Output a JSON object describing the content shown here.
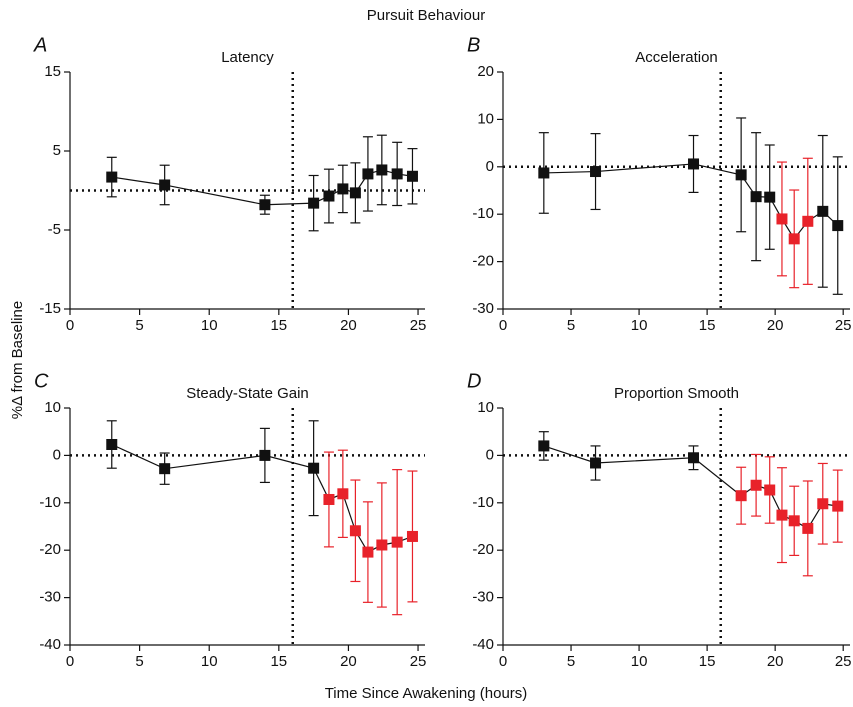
{
  "title": "Pursuit Behaviour",
  "xlabel": "Time Since Awakening (hours)",
  "ylabel": "%Δ from Baseline",
  "chart_data": [
    {
      "type": "line",
      "label": "A",
      "title": "Latency",
      "x": [
        3,
        6.8,
        14,
        17.5,
        18.6,
        19.6,
        20.5,
        21.4,
        22.4,
        23.5,
        24.6
      ],
      "values": [
        1.7,
        0.7,
        -1.8,
        -1.6,
        -0.7,
        0.2,
        -0.3,
        2.1,
        2.6,
        2.1,
        1.8
      ],
      "errors": [
        2.5,
        2.5,
        1.2,
        3.5,
        3.4,
        3.0,
        3.8,
        4.7,
        4.4,
        4.0,
        3.5
      ],
      "color": "#111111",
      "point_colors": [
        "#111111",
        "#111111",
        "#111111",
        "#111111",
        "#111111",
        "#111111",
        "#111111",
        "#111111",
        "#111111",
        "#111111",
        "#111111"
      ],
      "xlim": [
        0,
        25.5
      ],
      "xticks": [
        0,
        5,
        10,
        15,
        20,
        25
      ],
      "ylim": [
        -15,
        15
      ],
      "yticks": [
        -15,
        -5,
        5,
        15
      ],
      "vline": 16,
      "hline": 0
    },
    {
      "type": "line",
      "label": "B",
      "title": "Acceleration",
      "x": [
        3,
        6.8,
        14,
        17.5,
        18.6,
        19.6,
        20.5,
        21.4,
        22.4,
        23.5,
        24.6
      ],
      "values": [
        -1.3,
        -1,
        0.6,
        -1.7,
        -6.3,
        -6.4,
        -11,
        -15.2,
        -11.5,
        -9.4,
        -12.4
      ],
      "errors": [
        8.5,
        8,
        6,
        12,
        13.5,
        11,
        12,
        10.3,
        13.3,
        16,
        14.5
      ],
      "color": "#111111",
      "point_colors": [
        "#111111",
        "#111111",
        "#111111",
        "#111111",
        "#111111",
        "#111111",
        "#e8222a",
        "#e8222a",
        "#e8222a",
        "#111111",
        "#111111"
      ],
      "xlim": [
        0,
        25.5
      ],
      "xticks": [
        0,
        5,
        10,
        15,
        20,
        25
      ],
      "ylim": [
        -30,
        20
      ],
      "yticks": [
        -30,
        -20,
        -10,
        0,
        10,
        20
      ],
      "vline": 16,
      "hline": 0
    },
    {
      "type": "line",
      "label": "C",
      "title": "Steady-State Gain",
      "x": [
        3,
        6.8,
        14,
        17.5,
        18.6,
        19.6,
        20.5,
        21.4,
        22.4,
        23.5,
        24.6
      ],
      "values": [
        2.3,
        -2.8,
        0,
        -2.7,
        -9.3,
        -8.1,
        -15.9,
        -20.4,
        -18.9,
        -18.3,
        -17.1
      ],
      "errors": [
        5,
        3.3,
        5.7,
        10,
        10,
        9.2,
        10.7,
        10.6,
        13.1,
        15.3,
        13.8
      ],
      "color": "#111111",
      "point_colors": [
        "#111111",
        "#111111",
        "#111111",
        "#111111",
        "#e8222a",
        "#e8222a",
        "#e8222a",
        "#e8222a",
        "#e8222a",
        "#e8222a",
        "#e8222a"
      ],
      "xlim": [
        0,
        25.5
      ],
      "xticks": [
        0,
        5,
        10,
        15,
        20,
        25
      ],
      "ylim": [
        -40,
        10
      ],
      "yticks": [
        -40,
        -30,
        -20,
        -10,
        0,
        10
      ],
      "vline": 16,
      "hline": 0
    },
    {
      "type": "line",
      "label": "D",
      "title": "Proportion Smooth",
      "x": [
        3,
        6.8,
        14,
        17.5,
        18.6,
        19.6,
        20.5,
        21.4,
        22.4,
        23.5,
        24.6
      ],
      "values": [
        2,
        -1.6,
        -0.5,
        -8.5,
        -6.3,
        -7.3,
        -12.6,
        -13.8,
        -15.4,
        -10.2,
        -10.7
      ],
      "errors": [
        3,
        3.6,
        2.5,
        6,
        6.5,
        7,
        10,
        7.3,
        10,
        8.5,
        7.6
      ],
      "color": "#111111",
      "point_colors": [
        "#111111",
        "#111111",
        "#111111",
        "#e8222a",
        "#e8222a",
        "#e8222a",
        "#e8222a",
        "#e8222a",
        "#e8222a",
        "#e8222a",
        "#e8222a"
      ],
      "xlim": [
        0,
        25.5
      ],
      "xticks": [
        0,
        5,
        10,
        15,
        20,
        25
      ],
      "ylim": [
        -40,
        10
      ],
      "yticks": [
        -40,
        -30,
        -20,
        -10,
        0,
        10
      ],
      "vline": 16,
      "hline": 0
    }
  ]
}
